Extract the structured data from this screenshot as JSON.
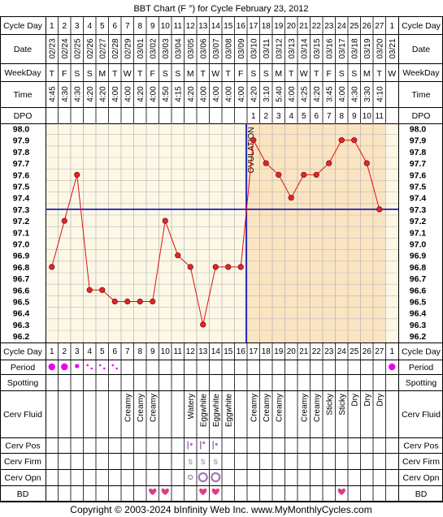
{
  "title": "BBT Chart (F °) for Cycle February 23, 2012",
  "copyright": "Copyright © 2003-2024 bInfinity Web Inc.    www.MyMonthlyCycles.com",
  "labels": {
    "cycle_day": "Cycle Day",
    "date": "Date",
    "weekday": "WeekDay",
    "time": "Time",
    "dpo": "DPO",
    "period": "Period",
    "spotting": "Spotting",
    "cerv_fluid": "Cerv Fluid",
    "cerv_pos": "Cerv Pos",
    "cerv_firm": "Cerv Firm",
    "cerv_opn": "Cerv Opn",
    "bd": "BD",
    "ovulation": "OVULATION"
  },
  "columns": {
    "cycle_day": [
      "1",
      "2",
      "3",
      "4",
      "5",
      "6",
      "7",
      "8",
      "9",
      "10",
      "11",
      "12",
      "13",
      "14",
      "15",
      "16",
      "17",
      "18",
      "19",
      "20",
      "21",
      "22",
      "23",
      "24",
      "25",
      "26",
      "27",
      "1"
    ],
    "dates": [
      "02/23",
      "02/24",
      "02/25",
      "02/26",
      "02/27",
      "02/28",
      "02/29",
      "03/01",
      "03/02",
      "03/03",
      "03/04",
      "03/05",
      "03/06",
      "03/07",
      "03/08",
      "03/09",
      "03/10",
      "03/11",
      "03/12",
      "03/13",
      "03/14",
      "03/15",
      "03/16",
      "03/17",
      "03/18",
      "03/19",
      "03/20",
      "03/21"
    ],
    "weekdays": [
      "T",
      "F",
      "S",
      "S",
      "M",
      "T",
      "W",
      "T",
      "F",
      "S",
      "S",
      "M",
      "T",
      "W",
      "T",
      "F",
      "S",
      "S",
      "M",
      "T",
      "W",
      "T",
      "F",
      "S",
      "S",
      "M",
      "T",
      "W"
    ],
    "times": [
      "4:45",
      "4:30",
      "4:30",
      "4:20",
      "4:20",
      "4:00",
      "4:00",
      "4:20",
      "4:00",
      "4:50",
      "4:15",
      "4:20",
      "4:00",
      "4:00",
      "4:00",
      "4:00",
      "4:20",
      "3:10",
      "5:40",
      "4:00",
      "4:25",
      "4:20",
      "3:45",
      "4:00",
      "4:30",
      "3:30",
      "4:10",
      ""
    ],
    "dpo": [
      "",
      "",
      "",
      "",
      "",
      "",
      "",
      "",
      "",
      "",
      "",
      "",
      "",
      "",
      "",
      "",
      "1",
      "2",
      "3",
      "4",
      "5",
      "6",
      "7",
      "8",
      "9",
      "10",
      "11",
      ""
    ],
    "cerv_fluid": [
      "",
      "",
      "",
      "",
      "",
      "",
      "Creamy",
      "Creamy",
      "Creamy",
      "",
      "",
      "Watery",
      "Eggwhite",
      "Eggwhite",
      "Eggwhite",
      "",
      "Creamy",
      "Creamy",
      "Creamy",
      "",
      "Creamy",
      "Creamy",
      "Sticky",
      "Sticky",
      "Dry",
      "Dry",
      "Dry",
      ""
    ],
    "period": [
      "heavy",
      "heavy",
      "medium",
      "light",
      "light",
      "light",
      "",
      "",
      "",
      "",
      "",
      "",
      "",
      "",
      "",
      "",
      "",
      "",
      "",
      "",
      "",
      "",
      "",
      "",
      "",
      "",
      "",
      "heavy"
    ],
    "cerv_pos": [
      "",
      "",
      "",
      "",
      "",
      "",
      "",
      "",
      "",
      "",
      "",
      "medium",
      "high",
      "medium",
      "",
      "",
      "",
      "",
      "",
      "",
      "",
      "",
      "",
      "",
      "",
      "",
      "",
      ""
    ],
    "cerv_firm": [
      "",
      "",
      "",
      "",
      "",
      "",
      "",
      "",
      "",
      "",
      "",
      "soft",
      "soft",
      "soft",
      "",
      "",
      "",
      "",
      "",
      "",
      "",
      "",
      "",
      "",
      "",
      "",
      "",
      ""
    ],
    "cerv_opn": [
      "",
      "",
      "",
      "",
      "",
      "",
      "",
      "",
      "",
      "",
      "",
      "slightly",
      "open",
      "open",
      "",
      "",
      "",
      "",
      "",
      "",
      "",
      "",
      "",
      "",
      "",
      "",
      "",
      ""
    ],
    "bd": [
      "",
      "",
      "",
      "",
      "",
      "",
      "",
      "",
      "yes",
      "yes",
      "",
      "",
      "yes",
      "yes",
      "",
      "",
      "",
      "",
      "",
      "",
      "",
      "",
      "",
      "yes",
      "",
      "",
      "",
      ""
    ]
  },
  "colors": {
    "plot_bg": "#fdf8e6",
    "luteal_bg": "#fbe4c2",
    "line": "#dd1111",
    "point": "#e0252b",
    "coverline": "#1a1abd",
    "period": "#ee00ee",
    "heart": "#e03b84",
    "cerv_marker": "#a874b8"
  },
  "chart_data": {
    "type": "line",
    "title": "BBT Chart (F °) for Cycle February 23, 2012",
    "xlabel": "Cycle Day",
    "ylabel": "",
    "x": [
      1,
      2,
      3,
      4,
      5,
      6,
      7,
      8,
      9,
      10,
      11,
      12,
      13,
      14,
      15,
      16,
      17,
      18,
      19,
      20,
      21,
      22,
      23,
      24,
      25,
      26,
      27
    ],
    "series": [
      {
        "values": [
          96.8,
          97.2,
          97.6,
          96.6,
          96.6,
          96.5,
          96.5,
          96.5,
          96.5,
          97.2,
          96.9,
          96.8,
          96.3,
          96.8,
          96.8,
          96.8,
          97.9,
          97.7,
          97.6,
          97.4,
          97.6,
          97.6,
          97.7,
          97.9,
          97.9,
          97.7,
          97.3
        ]
      }
    ],
    "ylim": [
      96.2,
      98.0
    ],
    "yticks": [
      "98.0",
      "97.9",
      "97.8",
      "97.7",
      "97.6",
      "97.5",
      "97.4",
      "97.3",
      "97.2",
      "97.1",
      "97.0",
      "96.9",
      "96.8",
      "96.7",
      "96.6",
      "96.5",
      "96.4",
      "96.3",
      "96.2"
    ],
    "coverline": 97.3,
    "ovulation_day": 16,
    "grid": true
  }
}
